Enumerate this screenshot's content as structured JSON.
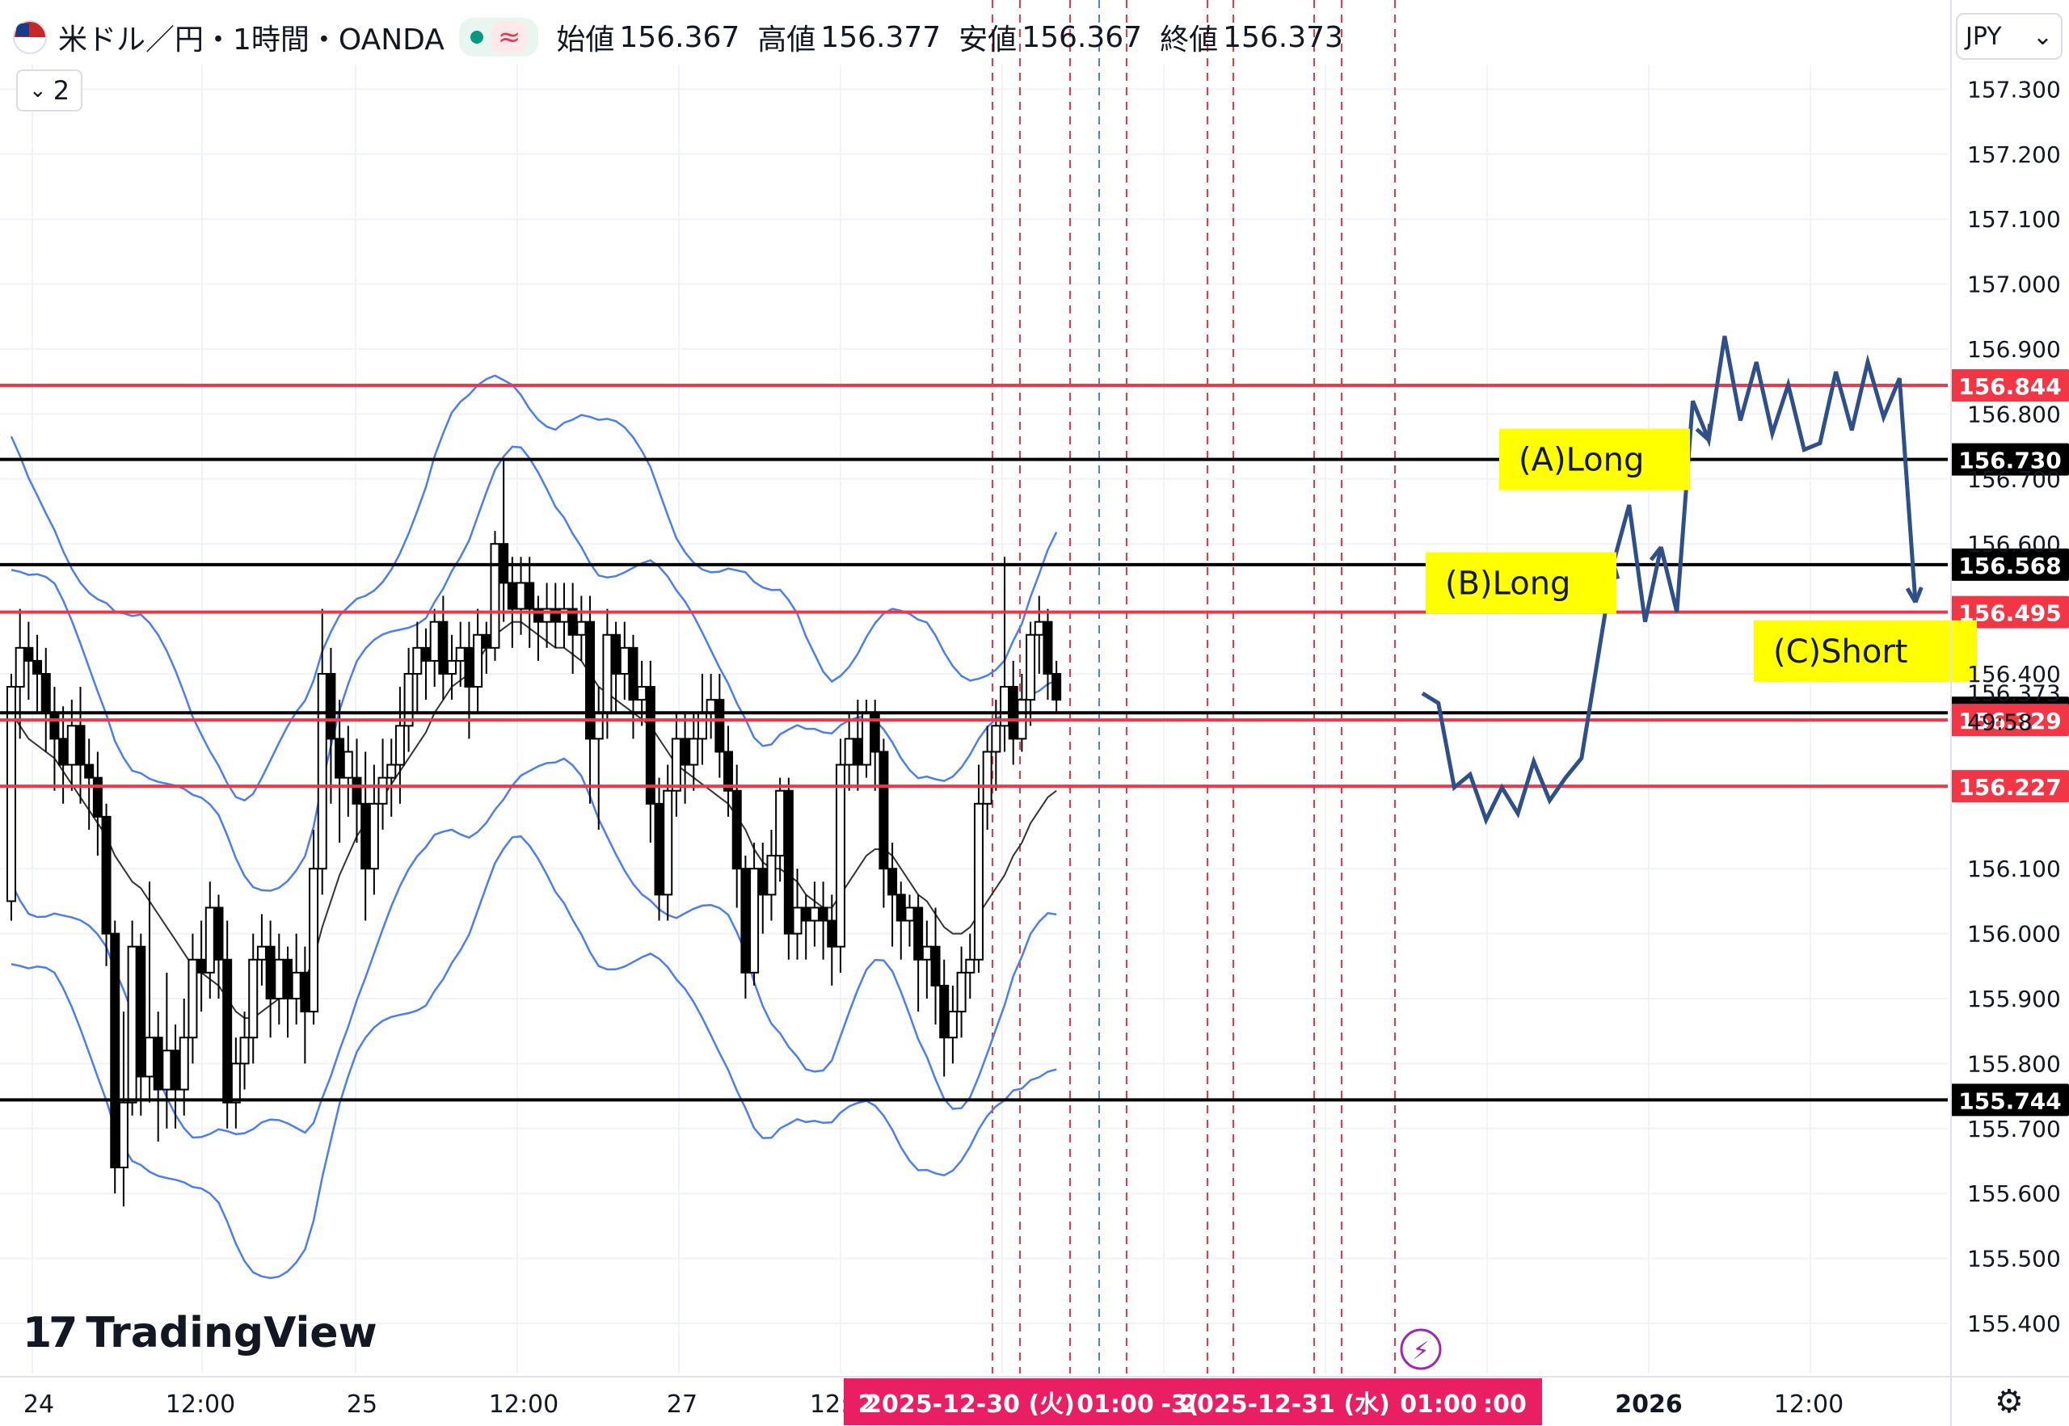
{
  "header": {
    "symbol": "米ドル／円・1時間・OANDA",
    "open_label": "始値",
    "open": "156.367",
    "high_label": "高値",
    "high": "156.377",
    "low_label": "安値",
    "low": "156.367",
    "close_label": "終値",
    "close": "156.373",
    "indicator_count": "2"
  },
  "currency": "JPY",
  "watermark": "TradingView",
  "chart_data": {
    "type": "candlestick",
    "y_ticks": [
      157.3,
      157.2,
      157.1,
      157.0,
      156.9,
      156.8,
      156.7,
      156.6,
      156.4,
      156.1,
      156.0,
      155.9,
      155.8,
      155.7,
      155.6,
      155.5,
      155.4
    ],
    "ylim": [
      155.38,
      157.36
    ],
    "x_ticks": [
      "24",
      "12:00",
      "25",
      "12:00",
      "27",
      "12:",
      "2026",
      "12:00"
    ],
    "x_highlight": [
      "2",
      "2025-12-30 (火)",
      "01:00",
      "-3(",
      "2025-12-31 (水)",
      "01:00",
      ":00"
    ],
    "last_price": "156.373",
    "countdown": "49:58",
    "horizontal_levels": [
      {
        "price": 156.844,
        "label": "156.844",
        "color": "#f23645"
      },
      {
        "price": 156.73,
        "label": "156.730",
        "color": "#000000"
      },
      {
        "price": 156.568,
        "label": "156.568",
        "color": "#000000"
      },
      {
        "price": 156.495,
        "label": "156.495",
        "color": "#f23645"
      },
      {
        "price": 156.34,
        "label": "156.340",
        "color": "#000000"
      },
      {
        "price": 156.329,
        "label": "156.329",
        "color": "#f23645"
      },
      {
        "price": 156.227,
        "label": "156.227",
        "color": "#f23645"
      },
      {
        "price": 155.744,
        "label": "155.744",
        "color": "#000000"
      }
    ],
    "annotations": [
      {
        "text": "(A)Long",
        "price": 156.73
      },
      {
        "text": "(B)Long",
        "price": 156.54
      },
      {
        "text": "(C)Short",
        "price": 156.435
      }
    ],
    "candles": [
      [
        156.05,
        156.38,
        156.02,
        156.4
      ],
      [
        156.38,
        156.44,
        156.3,
        156.5
      ],
      [
        156.44,
        156.42,
        156.36,
        156.48
      ],
      [
        156.42,
        156.4,
        156.34,
        156.46
      ],
      [
        156.4,
        156.34,
        156.28,
        156.44
      ],
      [
        156.34,
        156.3,
        156.22,
        156.38
      ],
      [
        156.3,
        156.26,
        156.2,
        156.35
      ],
      [
        156.26,
        156.32,
        156.22,
        156.36
      ],
      [
        156.32,
        156.26,
        156.2,
        156.38
      ],
      [
        156.26,
        156.24,
        156.16,
        156.3
      ],
      [
        156.24,
        156.18,
        156.12,
        156.28
      ],
      [
        156.18,
        156.0,
        155.95,
        156.2
      ],
      [
        156.0,
        155.64,
        155.6,
        156.02
      ],
      [
        155.64,
        155.74,
        155.58,
        155.88
      ],
      [
        155.74,
        155.98,
        155.72,
        156.02
      ],
      [
        155.98,
        155.78,
        155.72,
        156.0
      ],
      [
        155.78,
        155.84,
        155.74,
        156.08
      ],
      [
        155.84,
        155.76,
        155.68,
        155.88
      ],
      [
        155.76,
        155.82,
        155.7,
        155.94
      ],
      [
        155.82,
        155.76,
        155.7,
        155.86
      ],
      [
        155.76,
        155.84,
        155.72,
        155.9
      ],
      [
        155.84,
        155.96,
        155.8,
        156.0
      ],
      [
        155.96,
        155.94,
        155.88,
        156.02
      ],
      [
        155.94,
        156.04,
        155.9,
        156.08
      ],
      [
        156.04,
        155.96,
        155.9,
        156.06
      ],
      [
        155.96,
        155.74,
        155.7,
        156.02
      ],
      [
        155.74,
        155.8,
        155.7,
        155.84
      ],
      [
        155.8,
        155.84,
        155.76,
        155.88
      ],
      [
        155.84,
        155.96,
        155.8,
        156.0
      ],
      [
        155.96,
        155.98,
        155.92,
        156.03
      ],
      [
        155.98,
        155.9,
        155.84,
        156.02
      ],
      [
        155.9,
        155.96,
        155.86,
        156.0
      ],
      [
        155.96,
        155.9,
        155.84,
        155.98
      ],
      [
        155.9,
        155.94,
        155.86,
        156.0
      ],
      [
        155.94,
        155.88,
        155.8,
        155.98
      ],
      [
        155.88,
        156.1,
        155.86,
        156.16
      ],
      [
        156.1,
        156.4,
        156.06,
        156.5
      ],
      [
        156.4,
        156.3,
        156.2,
        156.44
      ],
      [
        156.3,
        156.24,
        156.14,
        156.36
      ],
      [
        156.24,
        156.28,
        156.18,
        156.32
      ],
      [
        156.24,
        156.2,
        156.14,
        156.3
      ],
      [
        156.2,
        156.1,
        156.02,
        156.28
      ],
      [
        156.1,
        156.2,
        156.06,
        156.26
      ],
      [
        156.2,
        156.24,
        156.16,
        156.3
      ],
      [
        156.24,
        156.26,
        156.18,
        156.3
      ],
      [
        156.26,
        156.32,
        156.2,
        156.38
      ],
      [
        156.32,
        156.4,
        156.28,
        156.44
      ],
      [
        156.4,
        156.44,
        156.34,
        156.48
      ],
      [
        156.44,
        156.42,
        156.36,
        156.47
      ],
      [
        156.42,
        156.48,
        156.38,
        156.5
      ],
      [
        156.48,
        156.4,
        156.36,
        156.52
      ],
      [
        156.4,
        156.42,
        156.36,
        156.46
      ],
      [
        156.42,
        156.44,
        156.38,
        156.48
      ],
      [
        156.44,
        156.38,
        156.3,
        156.48
      ],
      [
        156.38,
        156.46,
        156.34,
        156.5
      ],
      [
        156.46,
        156.44,
        156.4,
        156.48
      ],
      [
        156.44,
        156.6,
        156.42,
        156.62
      ],
      [
        156.6,
        156.54,
        156.48,
        156.73
      ],
      [
        156.54,
        156.5,
        156.44,
        156.58
      ],
      [
        156.5,
        156.54,
        156.46,
        156.58
      ],
      [
        156.54,
        156.5,
        156.44,
        156.58
      ],
      [
        156.5,
        156.48,
        156.42,
        156.52
      ],
      [
        156.48,
        156.5,
        156.44,
        156.54
      ],
      [
        156.5,
        156.48,
        156.44,
        156.54
      ],
      [
        156.48,
        156.5,
        156.44,
        156.54
      ],
      [
        156.5,
        156.46,
        156.4,
        156.54
      ],
      [
        156.46,
        156.48,
        156.42,
        156.52
      ],
      [
        156.48,
        156.3,
        156.2,
        156.52
      ],
      [
        156.3,
        156.34,
        156.16,
        156.38
      ],
      [
        156.34,
        156.46,
        156.3,
        156.5
      ],
      [
        156.46,
        156.4,
        156.34,
        156.48
      ],
      [
        156.4,
        156.44,
        156.36,
        156.48
      ],
      [
        156.44,
        156.36,
        156.3,
        156.46
      ],
      [
        156.36,
        156.38,
        156.32,
        156.42
      ],
      [
        156.38,
        156.2,
        156.14,
        156.42
      ],
      [
        156.2,
        156.06,
        156.02,
        156.24
      ],
      [
        156.06,
        156.22,
        156.02,
        156.26
      ],
      [
        156.22,
        156.3,
        156.18,
        156.34
      ],
      [
        156.3,
        156.26,
        156.2,
        156.34
      ],
      [
        156.26,
        156.3,
        156.22,
        156.34
      ],
      [
        156.3,
        156.34,
        156.26,
        156.4
      ],
      [
        156.34,
        156.36,
        156.3,
        156.4
      ],
      [
        156.36,
        156.28,
        156.24,
        156.4
      ],
      [
        156.28,
        156.22,
        156.18,
        156.32
      ],
      [
        156.22,
        156.1,
        156.04,
        156.26
      ],
      [
        156.1,
        155.94,
        155.9,
        156.12
      ],
      [
        155.94,
        156.1,
        155.92,
        156.14
      ],
      [
        156.1,
        156.06,
        156.0,
        156.14
      ],
      [
        156.06,
        156.12,
        156.02,
        156.16
      ],
      [
        156.12,
        156.22,
        156.08,
        156.24
      ],
      [
        156.22,
        156.0,
        155.96,
        156.24
      ],
      [
        156.0,
        156.04,
        155.96,
        156.1
      ],
      [
        156.04,
        156.02,
        155.96,
        156.06
      ],
      [
        156.02,
        156.04,
        155.98,
        156.08
      ],
      [
        156.04,
        156.02,
        155.96,
        156.08
      ],
      [
        156.02,
        155.98,
        155.92,
        156.06
      ],
      [
        155.98,
        156.26,
        155.94,
        156.3
      ],
      [
        156.26,
        156.3,
        156.22,
        156.34
      ],
      [
        156.3,
        156.26,
        156.22,
        156.36
      ],
      [
        156.26,
        156.34,
        156.24,
        156.36
      ],
      [
        156.34,
        156.28,
        156.22,
        156.36
      ],
      [
        156.28,
        156.1,
        156.04,
        156.3
      ],
      [
        156.1,
        156.06,
        155.98,
        156.14
      ],
      [
        156.06,
        156.02,
        155.96,
        156.08
      ],
      [
        156.02,
        156.04,
        155.98,
        156.06
      ],
      [
        156.04,
        155.96,
        155.88,
        156.06
      ],
      [
        155.96,
        155.98,
        155.9,
        156.02
      ],
      [
        155.98,
        155.92,
        155.86,
        156.04
      ],
      [
        155.92,
        155.84,
        155.78,
        155.96
      ],
      [
        155.84,
        155.88,
        155.8,
        155.92
      ],
      [
        155.88,
        155.94,
        155.84,
        155.98
      ],
      [
        155.94,
        155.96,
        155.9,
        156.0
      ],
      [
        155.96,
        156.2,
        155.94,
        156.26
      ],
      [
        156.2,
        156.28,
        156.16,
        156.32
      ],
      [
        156.28,
        156.32,
        156.22,
        156.36
      ],
      [
        156.32,
        156.38,
        156.28,
        156.58
      ],
      [
        156.38,
        156.3,
        156.26,
        156.42
      ],
      [
        156.3,
        156.36,
        156.28,
        156.4
      ],
      [
        156.36,
        156.46,
        156.32,
        156.48
      ],
      [
        156.46,
        156.48,
        156.4,
        156.52
      ],
      [
        156.48,
        156.4,
        156.36,
        156.5
      ],
      [
        156.4,
        156.36,
        156.34,
        156.42
      ]
    ],
    "sma": [
      156.34,
      156.32,
      156.3,
      156.29,
      156.28,
      156.27,
      156.25,
      156.23,
      156.21,
      156.19,
      156.17,
      156.15,
      156.12,
      156.1,
      156.08,
      156.07,
      156.05,
      156.03,
      156.01,
      155.99,
      155.97,
      155.95,
      155.94,
      155.93,
      155.92,
      155.9,
      155.88,
      155.87,
      155.87,
      155.88,
      155.89,
      155.9,
      155.91,
      155.92,
      155.93,
      155.96,
      156.01,
      156.05,
      156.09,
      156.12,
      156.15,
      156.17,
      156.19,
      156.21,
      156.23,
      156.25,
      156.27,
      156.29,
      156.31,
      156.34,
      156.36,
      156.38,
      156.39,
      156.4,
      156.42,
      156.44,
      156.46,
      156.47,
      156.48,
      156.48,
      156.47,
      156.46,
      156.45,
      156.44,
      156.44,
      156.43,
      156.42,
      156.4,
      156.38,
      156.37,
      156.36,
      156.35,
      156.34,
      156.33,
      156.32,
      156.3,
      156.28,
      156.26,
      156.25,
      156.24,
      156.23,
      156.22,
      156.21,
      156.2,
      156.18,
      156.16,
      156.13,
      156.11,
      156.1,
      156.1,
      156.09,
      156.08,
      156.06,
      156.05,
      156.04,
      156.04,
      156.06,
      156.08,
      156.1,
      156.12,
      156.13,
      156.13,
      156.12,
      156.1,
      156.08,
      156.06,
      156.05,
      156.03,
      156.01,
      156.0,
      156.0,
      156.01,
      156.03,
      156.05,
      156.07,
      156.09,
      156.12,
      156.14,
      156.17,
      156.19,
      156.21,
      156.22
    ],
    "forecast_path": [
      156.37,
      156.355,
      156.225,
      156.245,
      156.175,
      156.225,
      156.185,
      156.265,
      156.205,
      156.24,
      156.27,
      156.42,
      156.57,
      156.66,
      156.48,
      156.595,
      156.495,
      156.82,
      156.76,
      156.92,
      156.79,
      156.88,
      156.77,
      156.845,
      156.745,
      156.755,
      156.865,
      156.775,
      156.88,
      156.795,
      156.855,
      156.51
    ],
    "marker_icon": "lightning-icon",
    "settings_icon": "gear-icon",
    "grid": true,
    "colors": {
      "up": "#000000",
      "down": "#000000",
      "bands": "#4c7ef0",
      "sma": "#333333",
      "forecast": "#2f4f8a",
      "annotation_bg": "#ffff00"
    }
  }
}
